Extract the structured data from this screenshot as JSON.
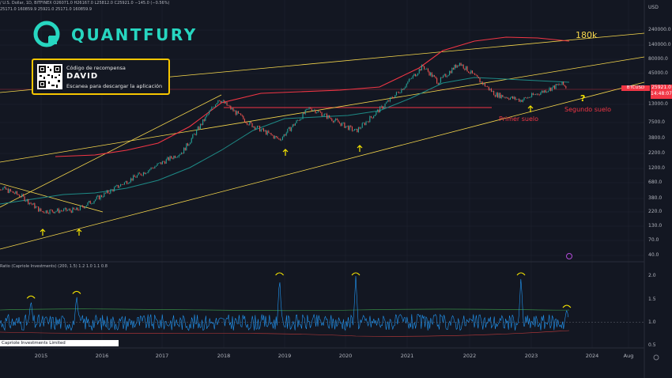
{
  "header": {
    "symbol_line": "/ U.S. Dollar, 1D, BITFINEX  O26071.0  H26167.0  L25812.0  C25921.0  −145.0 (−0.56%)",
    "ma_line": "25171.0  160859.9  25921.0  25171.0  160859.9"
  },
  "brand": {
    "name": "QUANTFURY"
  },
  "promo": {
    "line1": "Código de recompensa",
    "code": "DAVID",
    "line3": "Escanea para descargar la aplicación"
  },
  "price_axis": {
    "currency": "USD",
    "ticks": [
      "240000.0",
      "140000.0",
      "80000.0",
      "45000.0",
      "13000.0",
      "7500.0",
      "3800.0",
      "2200.0",
      "1200.0",
      "680.0",
      "380.0",
      "220.0",
      "130.0",
      "70.0",
      "40.0"
    ],
    "symbol_tag": "BTCUSD",
    "last_price": "25921.0",
    "countdown": "14:48:07"
  },
  "ratio_panel": {
    "label": "Ratio (Capriole Investments) (200, 1.5)  1.2  1.0  1.1  0.8",
    "ticks": [
      "2.0",
      "1.5",
      "1.0",
      "0.5"
    ]
  },
  "time_axis": {
    "labels": [
      "2015",
      "2016",
      "2017",
      "2018",
      "2019",
      "2020",
      "2021",
      "2022",
      "2023",
      "2024",
      "Aug"
    ]
  },
  "annotations": {
    "target": "180k",
    "first_bottom": "Primer suelo",
    "second_bottom": "Segundo suelo",
    "question": "?"
  },
  "watermark": "Capriole Investments Limited",
  "colors": {
    "background": "#131722",
    "candles": "#26a69a",
    "red_ma": "#f23645",
    "teal_ma": "#1e8a86",
    "channel": "#f7d84c",
    "oscillator": "#2196f3",
    "arrows": "#f7e600"
  },
  "chart_data": {
    "type": "line",
    "title": "",
    "scale": "log",
    "x_range": [
      "2014-01",
      "2024-08"
    ],
    "ylim": [
      40,
      240000
    ],
    "price_points": [
      {
        "date": "2014-03",
        "price": 640
      },
      {
        "date": "2014-09",
        "price": 400
      },
      {
        "date": "2015-01",
        "price": 220
      },
      {
        "date": "2015-08",
        "price": 230
      },
      {
        "date": "2016-06",
        "price": 700
      },
      {
        "date": "2017-05",
        "price": 2200
      },
      {
        "date": "2017-12",
        "price": 17000
      },
      {
        "date": "2018-06",
        "price": 6500
      },
      {
        "date": "2018-12",
        "price": 3500
      },
      {
        "date": "2019-06",
        "price": 12000
      },
      {
        "date": "2020-03",
        "price": 4800
      },
      {
        "date": "2020-12",
        "price": 25000
      },
      {
        "date": "2021-04",
        "price": 60000
      },
      {
        "date": "2021-07",
        "price": 32000
      },
      {
        "date": "2021-11",
        "price": 68000
      },
      {
        "date": "2022-06",
        "price": 20000
      },
      {
        "date": "2022-11",
        "price": 16000
      },
      {
        "date": "2023-07",
        "price": 30000
      },
      {
        "date": "2023-08",
        "price": 25921
      }
    ],
    "ratio_peaks": [
      {
        "date": "2014-11",
        "value": 1.5
      },
      {
        "date": "2015-08",
        "value": 1.6
      },
      {
        "date": "2018-12",
        "value": 2.0
      },
      {
        "date": "2020-03",
        "value": 2.0
      },
      {
        "date": "2022-11",
        "value": 2.0
      },
      {
        "date": "2023-08",
        "value": 1.3
      }
    ],
    "ratio_ylim": [
      0.5,
      2.2
    ]
  }
}
